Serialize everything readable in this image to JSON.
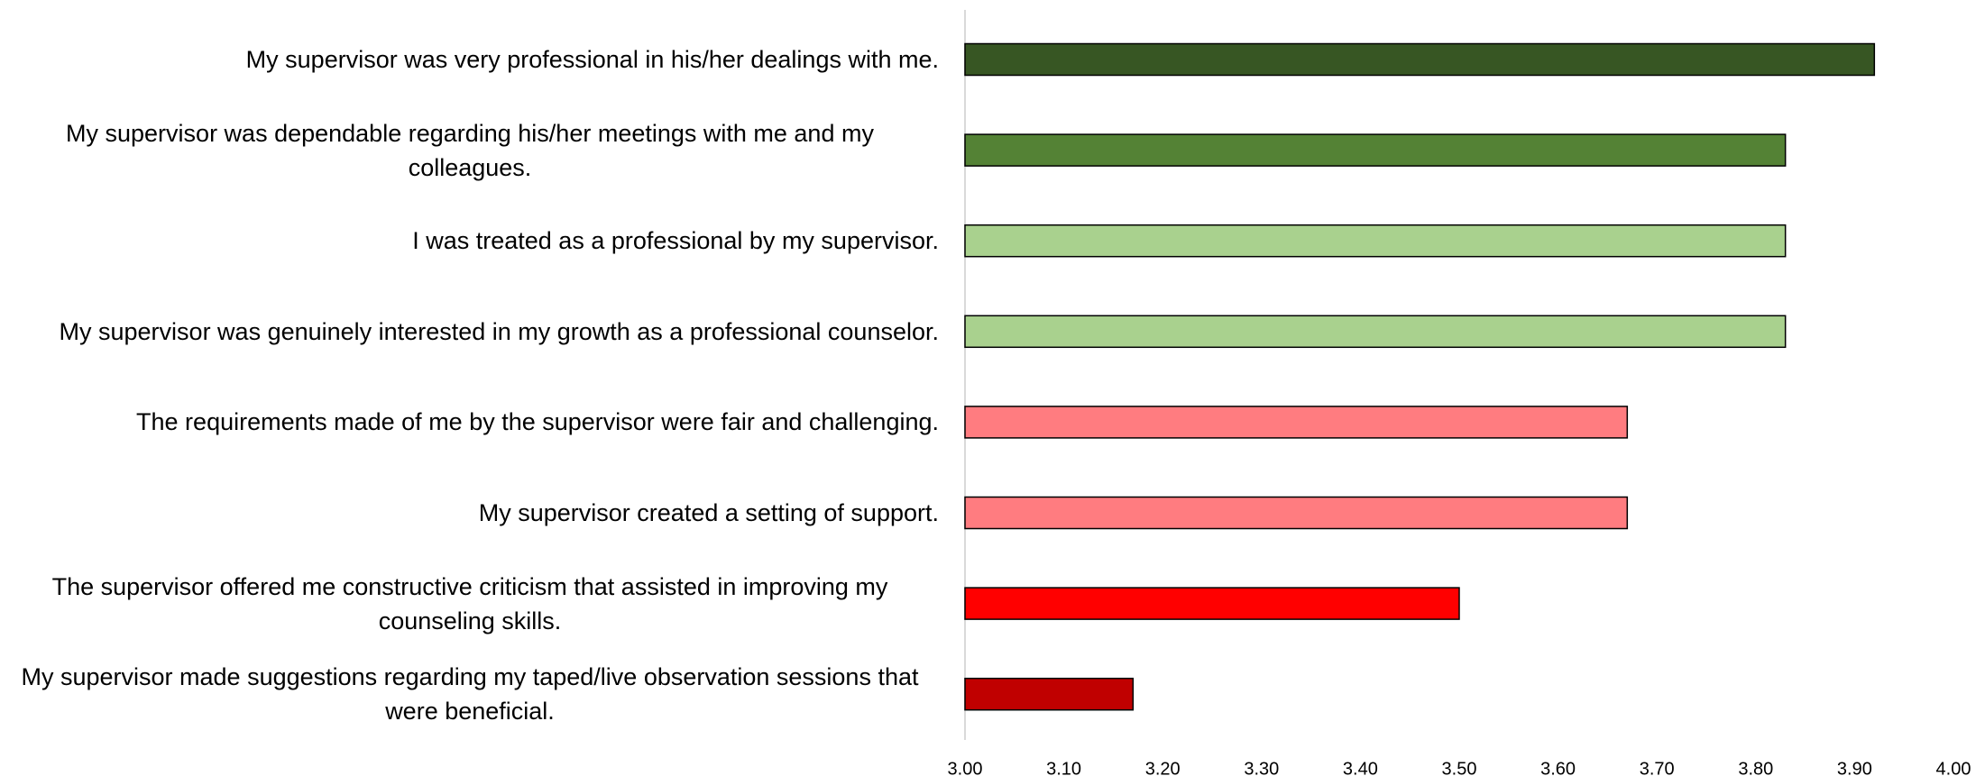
{
  "chart_data": {
    "type": "bar",
    "orientation": "horizontal",
    "categories": [
      "My supervisor was very professional in his/her dealings with me.",
      "My supervisor was dependable regarding his/her meetings with me and my colleagues.",
      "I was treated as a professional by my supervisor.",
      "My supervisor was genuinely interested in my growth as a professional counselor.",
      "The requirements made of me by the supervisor were fair and challenging.",
      "My supervisor created a setting of support.",
      "The supervisor offered me constructive criticism that assisted in improving my counseling skills.",
      "My supervisor made suggestions regarding my taped/live observation sessions that were beneficial."
    ],
    "values": [
      3.92,
      3.83,
      3.83,
      3.83,
      3.67,
      3.67,
      3.5,
      3.17
    ],
    "colors": [
      "#375623",
      "#548235",
      "#a9d18e",
      "#a9d18e",
      "#ff7c80",
      "#ff7c80",
      "#ff0000",
      "#c00000"
    ],
    "xlim": [
      3,
      4
    ],
    "xticks": [
      {
        "value": 3,
        "label": "3.00"
      },
      {
        "value": 3.1,
        "label": "3.10"
      },
      {
        "value": 3.2,
        "label": "3.20"
      },
      {
        "value": 3.3,
        "label": "3.30"
      },
      {
        "value": 3.4,
        "label": "3.40"
      },
      {
        "value": 3.5,
        "label": "3.50"
      },
      {
        "value": 3.6,
        "label": "3.60"
      },
      {
        "value": 3.7,
        "label": "3.70"
      },
      {
        "value": 3.8,
        "label": "3.80"
      },
      {
        "value": 3.9,
        "label": "3.90"
      },
      {
        "value": 4,
        "label": "4.00"
      }
    ],
    "grid": false
  }
}
